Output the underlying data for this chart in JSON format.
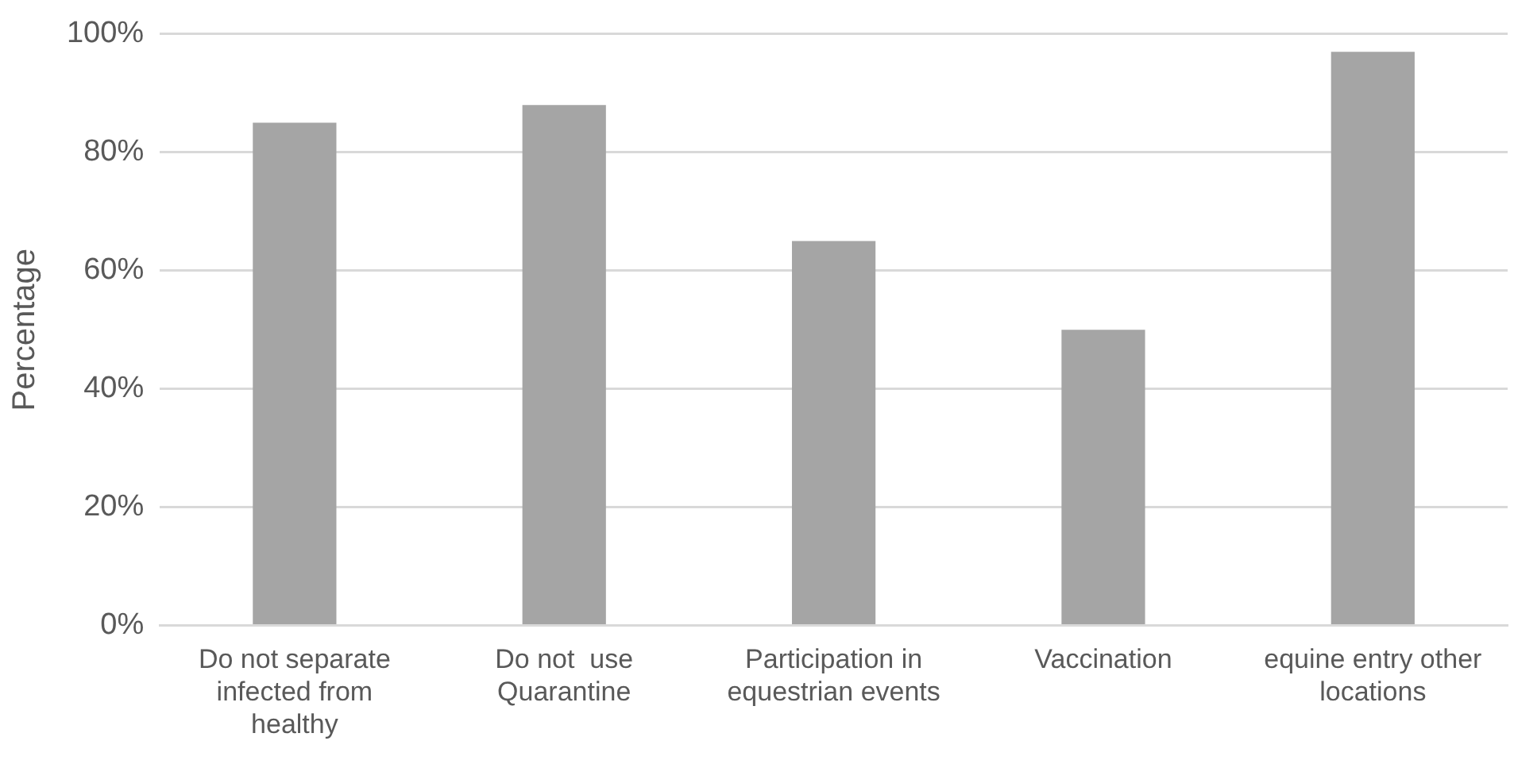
{
  "chart_data": {
    "type": "bar",
    "ylabel": "Percentage",
    "categories": [
      "Do not separate infected from healthy",
      "Do not  use Quarantine",
      "Participation in equestrian events",
      "Vaccination",
      "equine entry other locations"
    ],
    "values": [
      85,
      88,
      65,
      50,
      97
    ],
    "color": "#a5a5a5",
    "ylim": [
      0,
      100
    ],
    "yticks": [
      {
        "value": 0,
        "label": "0%"
      },
      {
        "value": 20,
        "label": "20%"
      },
      {
        "value": 40,
        "label": "40%"
      },
      {
        "value": 60,
        "label": "60%"
      },
      {
        "value": 80,
        "label": "80%"
      },
      {
        "value": 100,
        "label": "100%"
      }
    ],
    "grid": "y",
    "legend": false
  }
}
